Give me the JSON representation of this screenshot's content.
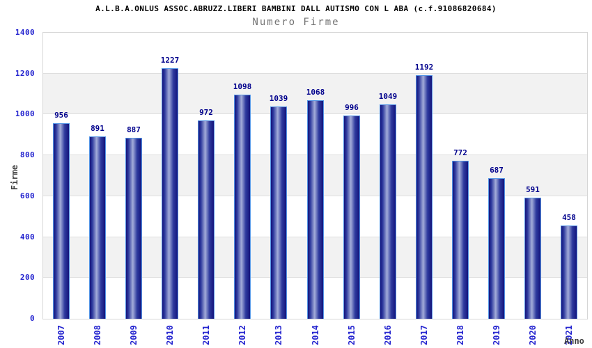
{
  "chart_data": {
    "type": "bar",
    "title": "A.L.B.A.ONLUS ASSOC.ABRUZZ.LIBERI BAMBINI DALL AUTISMO CON L ABA (c.f.91086820684)",
    "subtitle": "Numero Firme",
    "xlabel": "Anno",
    "ylabel": "Firme",
    "categories": [
      "2007",
      "2008",
      "2009",
      "2010",
      "2011",
      "2012",
      "2013",
      "2014",
      "2015",
      "2016",
      "2017",
      "2018",
      "2019",
      "2020",
      "2021"
    ],
    "values": [
      956,
      891,
      887,
      1227,
      972,
      1098,
      1039,
      1068,
      996,
      1049,
      1192,
      772,
      687,
      591,
      458
    ],
    "ylim": [
      0,
      1400
    ],
    "ytick_step": 200,
    "yticks": [
      0,
      200,
      400,
      600,
      800,
      1000,
      1200,
      1400
    ],
    "grid": "alternating horizontal bands every 200 units with light gridlines",
    "legend": false,
    "value_labels": "above each bar"
  },
  "colors": {
    "axis_tick": "#2424cf",
    "value_label": "#00008c",
    "title": "#000000",
    "subtitle": "#737373",
    "axis_title": "#3d3d3d",
    "band_light": "#ffffff",
    "band_dark": "#f2f2f2",
    "grid_line": "#dedede",
    "plot_border": "#d6d6d6",
    "bar_edge": "#5596e6",
    "bar_dark": "#14147c",
    "bar_mid": "#2e3a9e",
    "bar_light": "#a3acd9"
  }
}
